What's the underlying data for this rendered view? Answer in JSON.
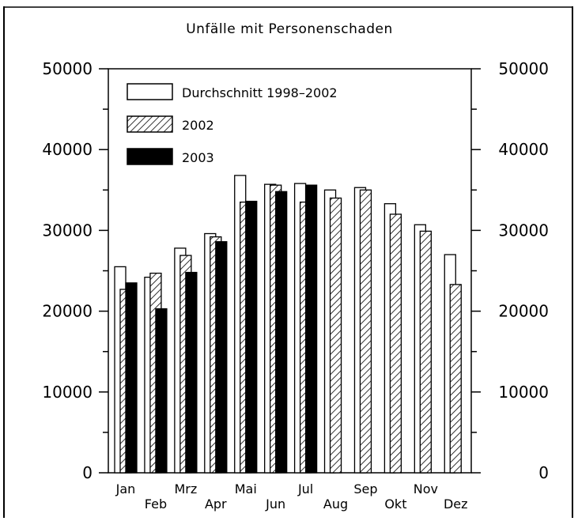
{
  "chart_data": {
    "type": "bar",
    "title": "Unfälle mit Personenschaden",
    "xlabel": "",
    "ylabel": "",
    "ylim": [
      0,
      50000
    ],
    "yticks": [
      "0",
      "10000",
      "20000",
      "30000",
      "40000",
      "50000"
    ],
    "categories": [
      "Jan",
      "Feb",
      "Mrz",
      "Apr",
      "Mai",
      "Jun",
      "Jul",
      "Aug",
      "Sep",
      "Okt",
      "Nov",
      "Dez"
    ],
    "series": [
      {
        "name": "Durchschnitt 1998–2002",
        "pattern": "white",
        "values": [
          25500,
          24200,
          27800,
          29600,
          36800,
          35700,
          35800,
          35000,
          35300,
          33300,
          30700,
          27000
        ]
      },
      {
        "name": "2002",
        "pattern": "hatched",
        "values": [
          22700,
          24700,
          26900,
          29200,
          33500,
          35600,
          33500,
          34000,
          35000,
          32000,
          29900,
          23300
        ]
      },
      {
        "name": "2003",
        "pattern": "black",
        "values": [
          23500,
          20300,
          24800,
          28600,
          33600,
          34800,
          35600,
          null,
          null,
          null,
          null,
          null
        ]
      }
    ],
    "legend_position": "top-left",
    "grid": false,
    "colors": {
      "bar_fill_white": "#ffffff",
      "bar_fill_black": "#000000",
      "stroke": "#000000"
    }
  }
}
